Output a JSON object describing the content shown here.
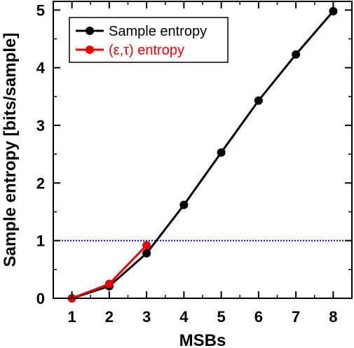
{
  "chart_data": {
    "type": "line",
    "title": "",
    "xlabel": "MSBs",
    "ylabel": "Sample entropy [bits/sample]",
    "xlim": [
      0.5,
      8.5
    ],
    "ylim": [
      0,
      5.15
    ],
    "xticks": [
      1,
      2,
      3,
      4,
      5,
      6,
      7,
      8
    ],
    "yticks": [
      0,
      1,
      2,
      3,
      4,
      5
    ],
    "grid": false,
    "legend_position": "top-left",
    "reference_line": {
      "y": 1,
      "color": "#0000cc",
      "style": "dotted"
    },
    "series": [
      {
        "name": "Sample entropy",
        "color": "#000000",
        "x": [
          1,
          2,
          3,
          4,
          5,
          6,
          7,
          8
        ],
        "y": [
          0,
          0.21,
          0.78,
          1.62,
          2.53,
          3.43,
          4.23,
          4.98
        ]
      },
      {
        "name": "(ε,τ) entropy",
        "color": "#ee0000",
        "x": [
          1,
          2,
          3
        ],
        "y": [
          0,
          0.25,
          0.92
        ]
      }
    ]
  }
}
